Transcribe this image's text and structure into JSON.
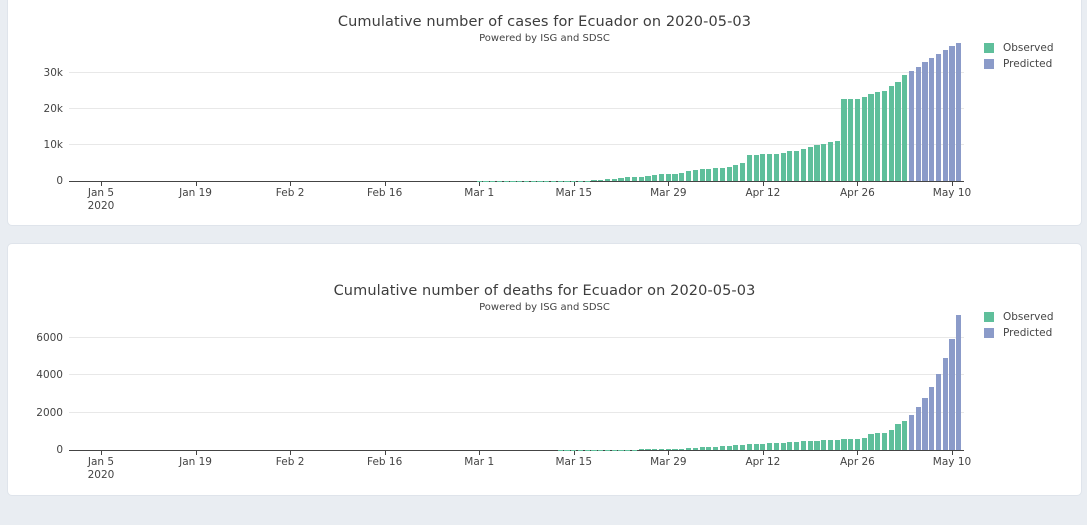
{
  "page": {
    "background_color": "#e9edf2",
    "panel_color": "#ffffff"
  },
  "colors": {
    "observed": "#5fbf9b",
    "predicted": "#8b9bc9",
    "axis_text": "#444444",
    "gridline": "#e8e8e8"
  },
  "chart_data": [
    {
      "type": "bar",
      "title": "Cumulative number of cases for Ecuador on 2020-05-03",
      "subtitle": "Powered by ISG and SDSC",
      "legend_position": "top-right",
      "grid": "horizontal",
      "x_axis": {
        "year_label": "2020",
        "tick_labels": [
          "Jan 5",
          "Jan 19",
          "Feb 2",
          "Feb 16",
          "Mar 1",
          "Mar 15",
          "Mar 29",
          "Apr 12",
          "Apr 26",
          "May 10"
        ],
        "tick_day_offsets": [
          0,
          14,
          28,
          42,
          56,
          70,
          84,
          98,
          112,
          126
        ]
      },
      "y_axis": {
        "tick_labels": [
          "0",
          "10k",
          "20k",
          "30k"
        ],
        "tick_values": [
          0,
          10000,
          20000,
          30000
        ],
        "range": [
          0,
          38900
        ]
      },
      "series": [
        {
          "name": "Observed",
          "color": "#5fbf9b",
          "start_date": "2020-03-01",
          "start_day_offset": 56,
          "values": [
            6,
            6,
            7,
            10,
            13,
            13,
            13,
            14,
            15,
            15,
            17,
            17,
            23,
            28,
            37,
            58,
            111,
            168,
            260,
            426,
            506,
            789,
            981,
            1082,
            1173,
            1403,
            1595,
            1823,
            1924,
            1962,
            2240,
            2748,
            3163,
            3368,
            3465,
            3646,
            3747,
            3995,
            4450,
            4965,
            7161,
            7257,
            7466,
            7529,
            7603,
            7858,
            8225,
            8450,
            9022,
            9468,
            10128,
            10398,
            10850,
            11183,
            22719,
            22719,
            22719,
            23240,
            24258,
            24675,
            24934,
            26336,
            27464,
            29538
          ]
        },
        {
          "name": "Predicted",
          "color": "#8b9bc9",
          "start_date": "2020-05-04",
          "start_day_offset": 120,
          "values": [
            30650,
            31800,
            32950,
            34100,
            35300,
            36500,
            37400,
            38400
          ]
        }
      ]
    },
    {
      "type": "bar",
      "title": "Cumulative number of deaths for Ecuador on 2020-05-03",
      "subtitle": "Powered by ISG and SDSC",
      "legend_position": "top-right",
      "grid": "horizontal",
      "x_axis": {
        "year_label": "2020",
        "tick_labels": [
          "Jan 5",
          "Jan 19",
          "Feb 2",
          "Feb 16",
          "Mar 1",
          "Mar 15",
          "Mar 29",
          "Apr 12",
          "Apr 26",
          "May 10"
        ],
        "tick_day_offsets": [
          0,
          14,
          28,
          42,
          56,
          70,
          84,
          98,
          112,
          126
        ]
      },
      "y_axis": {
        "tick_labels": [
          "0",
          "2000",
          "4000",
          "6000"
        ],
        "tick_values": [
          0,
          2000,
          4000,
          6000
        ],
        "range": [
          0,
          7467
        ]
      },
      "series": [
        {
          "name": "Observed",
          "color": "#5fbf9b",
          "start_date": "2020-03-01",
          "start_day_offset": 56,
          "values": [
            0,
            0,
            0,
            0,
            0,
            0,
            0,
            0,
            0,
            0,
            0,
            0,
            1,
            2,
            2,
            2,
            2,
            3,
            4,
            7,
            7,
            14,
            18,
            27,
            28,
            34,
            36,
            48,
            58,
            60,
            75,
            93,
            120,
            145,
            172,
            180,
            191,
            220,
            242,
            272,
            297,
            315,
            333,
            355,
            369,
            388,
            403,
            421,
            456,
            474,
            507,
            520,
            537,
            560,
            576,
            576,
            576,
            663,
            871,
            883,
            900,
            1063,
            1371,
            1564
          ]
        },
        {
          "name": "Predicted",
          "color": "#8b9bc9",
          "start_date": "2020-05-04",
          "start_day_offset": 120,
          "values": [
            1890,
            2290,
            2770,
            3350,
            4060,
            4910,
            5940,
            7190
          ]
        }
      ]
    }
  ]
}
